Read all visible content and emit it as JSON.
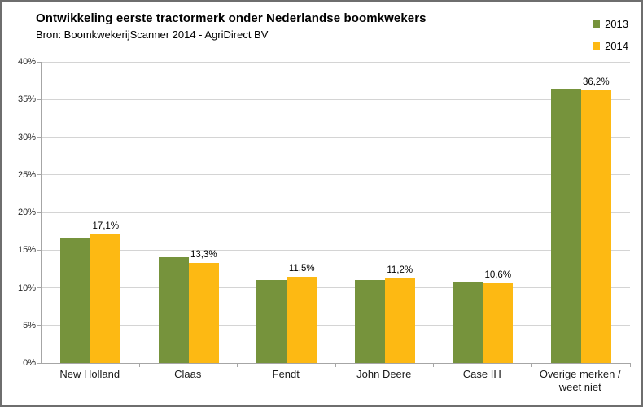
{
  "title": "Ontwikkeling eerste tractormerk onder Nederlandse boomkwekers",
  "subtitle": "Bron: BoomkwekerijScanner 2014 - AgriDirect BV",
  "colors": {
    "green_2013": "#76933C",
    "yellow_2014": "#FDB913"
  },
  "legend": [
    {
      "label": "2013",
      "color": "#76933C"
    },
    {
      "label": "2014",
      "color": "#FDB913"
    }
  ],
  "chart_data": {
    "type": "bar",
    "title": "Ontwikkeling eerste tractormerk onder Nederlandse boomkwekers",
    "subtitle": "Bron: BoomkwekerijScanner 2014 - AgriDirect BV",
    "categories": [
      "New Holland",
      "Claas",
      "Fendt",
      "John Deere",
      "Case IH",
      "Overige merken / weet niet"
    ],
    "series": [
      {
        "name": "2013",
        "color": "#76933C",
        "values": [
          16.7,
          14.1,
          11.0,
          11.0,
          10.7,
          36.4
        ]
      },
      {
        "name": "2014",
        "color": "#FDB913",
        "values": [
          17.1,
          13.3,
          11.5,
          11.2,
          10.6,
          36.2
        ],
        "data_labels": [
          "17,1%",
          "13,3%",
          "11,5%",
          "11,2%",
          "10,6%",
          "36,2%"
        ]
      }
    ],
    "ylim": [
      0,
      40
    ],
    "ytick_step": 5,
    "ytick_labels": [
      "0%",
      "5%",
      "10%",
      "15%",
      "20%",
      "25%",
      "30%",
      "35%",
      "40%"
    ],
    "grid": true,
    "legend_position": "top-right"
  }
}
